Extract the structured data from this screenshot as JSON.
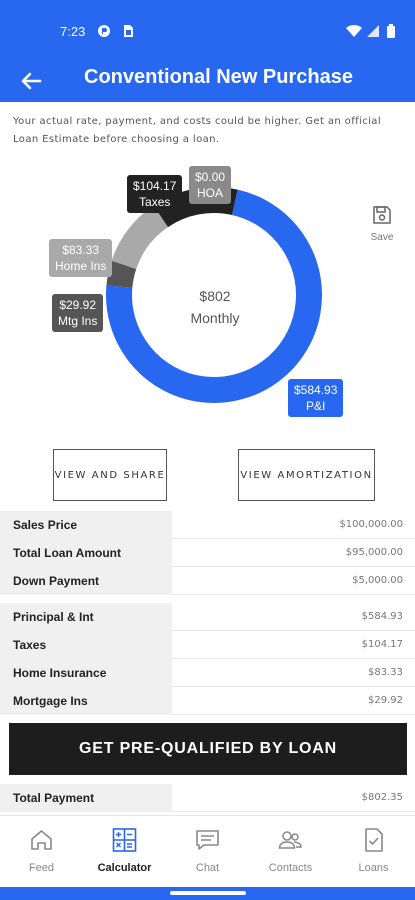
{
  "status_bar": {
    "time": "7:23"
  },
  "header": {
    "title": "Conventional New Purchase"
  },
  "disclaimer": "Your actual rate, payment, and costs could be higher. Get an official Loan Estimate before choosing a loan.",
  "chart": {
    "center_amount": "$802",
    "center_label": "Monthly",
    "segments": [
      {
        "amount": "$584.93",
        "label": "P&I",
        "value": 584.93,
        "color": "#2867f0"
      },
      {
        "amount": "$29.92",
        "label": "Mtg Ins",
        "value": 29.92,
        "color": "#555555"
      },
      {
        "amount": "$83.33",
        "label": "Home Ins",
        "value": 83.33,
        "color": "#a9a9a9"
      },
      {
        "amount": "$104.17",
        "label": "Taxes",
        "value": 104.17,
        "color": "#222222"
      },
      {
        "amount": "$0.00",
        "label": "HOA",
        "value": 0,
        "color": "#8a8a8a"
      }
    ]
  },
  "save": {
    "label": "Save"
  },
  "buttons": {
    "view_share": "VIEW AND SHARE",
    "view_amortization": "VIEW AMORTIZATION"
  },
  "loan_table": [
    {
      "label": "Sales Price",
      "value": "$100,000.00"
    },
    {
      "label": "Total Loan Amount",
      "value": "$95,000.00"
    },
    {
      "label": "Down Payment",
      "value": "$5,000.00"
    }
  ],
  "payment_table": [
    {
      "label": "Principal & Int",
      "value": "$584.93"
    },
    {
      "label": "Taxes",
      "value": "$104.17"
    },
    {
      "label": "Home Insurance",
      "value": "$83.33"
    },
    {
      "label": "Mortgage Ins",
      "value": "$29.92"
    }
  ],
  "cta": {
    "label": "GET PRE-QUALIFIED BY LOAN"
  },
  "total_table": [
    {
      "label": "Total Payment",
      "value": "$802.35"
    }
  ],
  "nav": {
    "items": [
      {
        "label": "Feed",
        "icon": "home-icon"
      },
      {
        "label": "Calculator",
        "icon": "calculator-icon",
        "active": true
      },
      {
        "label": "Chat",
        "icon": "chat-icon"
      },
      {
        "label": "Contacts",
        "icon": "contacts-icon"
      },
      {
        "label": "Loans",
        "icon": "document-check-icon"
      }
    ]
  },
  "colors": {
    "primary": "#2867f0",
    "dark": "#1d1d1d"
  }
}
